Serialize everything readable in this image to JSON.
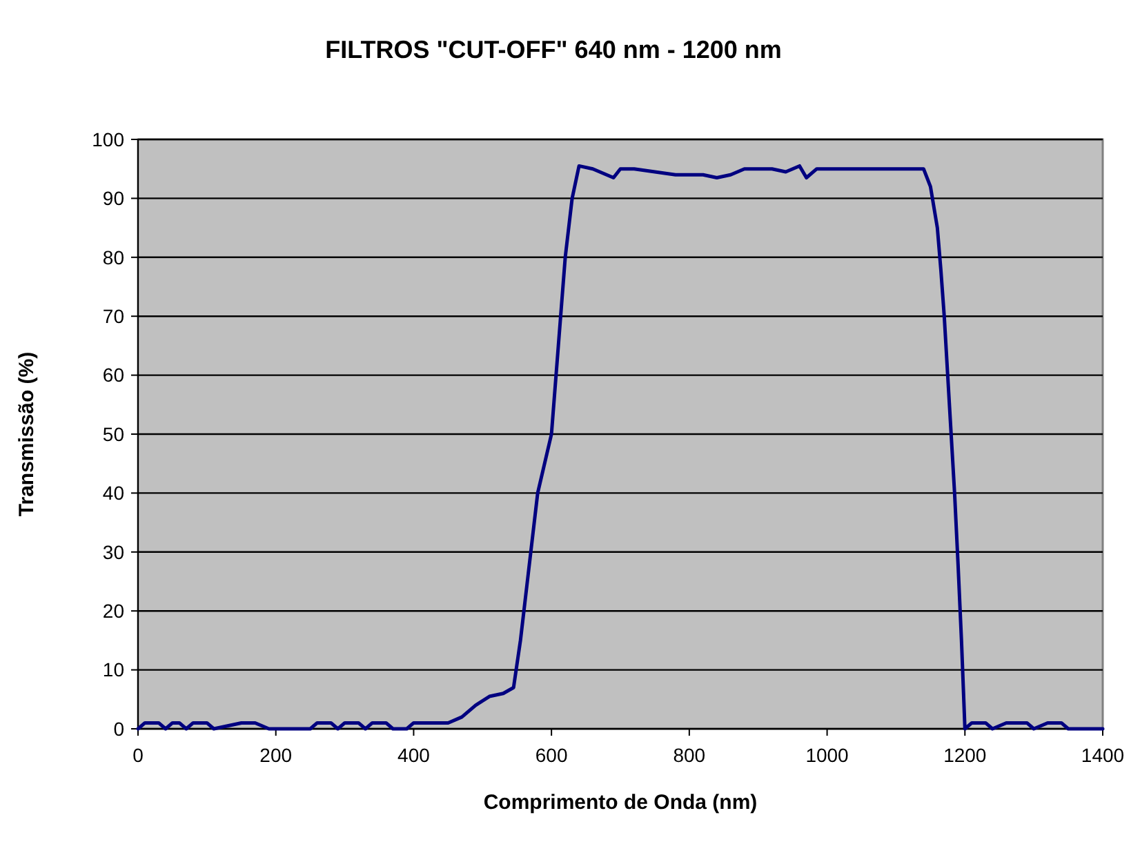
{
  "chart_data": {
    "type": "line",
    "title": "FILTROS \"CUT-OFF\" 640 nm - 1200 nm",
    "xlabel": "Comprimento de Onda (nm)",
    "ylabel": "Transmissão (%)",
    "xlim": [
      0,
      1400
    ],
    "xticks": [
      0,
      200,
      400,
      600,
      800,
      1000,
      1200,
      1400
    ],
    "ylim": [
      0,
      100
    ],
    "yticks": [
      0,
      10,
      20,
      30,
      40,
      50,
      60,
      70,
      80,
      90,
      100
    ],
    "grid": "y",
    "series": [
      {
        "color": "#000080",
        "x": [
          0,
          10,
          30,
          40,
          50,
          60,
          70,
          80,
          100,
          110,
          150,
          170,
          190,
          250,
          260,
          280,
          290,
          300,
          320,
          330,
          340,
          360,
          370,
          390,
          400,
          450,
          470,
          490,
          510,
          530,
          545,
          555,
          570,
          580,
          600,
          610,
          620,
          630,
          640,
          660,
          680,
          690,
          700,
          720,
          780,
          820,
          840,
          860,
          880,
          920,
          940,
          960,
          970,
          985,
          1000,
          1140,
          1150,
          1160,
          1165,
          1170,
          1175,
          1180,
          1185,
          1190,
          1195,
          1200,
          1210,
          1230,
          1240,
          1260,
          1290,
          1300,
          1320,
          1340,
          1350,
          1400
        ],
        "values": [
          0,
          1,
          1,
          0,
          1,
          1,
          0,
          1,
          1,
          0,
          1,
          1,
          0,
          0,
          1,
          1,
          0,
          1,
          1,
          0,
          1,
          1,
          0,
          0,
          1,
          1,
          2,
          4,
          5.5,
          6,
          7,
          15,
          30,
          40,
          50,
          65,
          80,
          90,
          95.5,
          95,
          94,
          93.5,
          95,
          95,
          94,
          94,
          93.5,
          94,
          95,
          95,
          94.5,
          95.5,
          93.5,
          95,
          95,
          95,
          92,
          85,
          78,
          70,
          60,
          50,
          40,
          28,
          15,
          0,
          1,
          1,
          0,
          1,
          1,
          0,
          1,
          1,
          0,
          0
        ]
      }
    ]
  }
}
